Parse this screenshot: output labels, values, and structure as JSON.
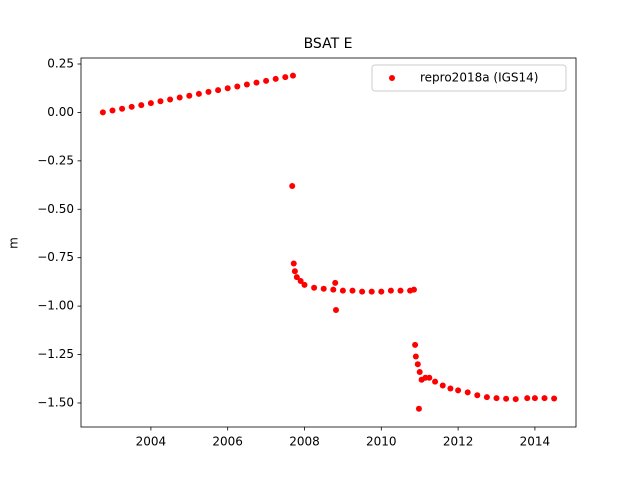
{
  "chart_data": {
    "type": "scatter",
    "title": "BSAT E",
    "y_label": "m",
    "x": [
      2002.75,
      2003.0,
      2003.25,
      2003.5,
      2003.75,
      2004.0,
      2004.25,
      2004.5,
      2004.75,
      2005.0,
      2005.25,
      2005.5,
      2005.75,
      2006.0,
      2006.25,
      2006.5,
      2006.75,
      2007.0,
      2007.25,
      2007.5,
      2007.7,
      2007.68,
      2007.72,
      2007.75,
      2007.8,
      2007.9,
      2008.0,
      2008.25,
      2008.5,
      2008.75,
      2008.8,
      2008.82,
      2009.0,
      2009.25,
      2009.5,
      2009.75,
      2010.0,
      2010.25,
      2010.5,
      2010.75,
      2010.85,
      2010.88,
      2010.9,
      2010.95,
      2010.98,
      2011.0,
      2011.05,
      2011.15,
      2011.25,
      2011.4,
      2011.6,
      2011.8,
      2012.0,
      2012.25,
      2012.5,
      2012.75,
      2013.0,
      2013.25,
      2013.5,
      2013.8,
      2014.0,
      2014.25,
      2014.5
    ],
    "series": [
      {
        "name": "repro2018a (IGS14)",
        "color": "#ff0000",
        "values": [
          0.0,
          0.01,
          0.019,
          0.029,
          0.038,
          0.048,
          0.058,
          0.067,
          0.077,
          0.086,
          0.096,
          0.106,
          0.115,
          0.125,
          0.134,
          0.144,
          0.154,
          0.163,
          0.173,
          0.182,
          0.19,
          -0.38,
          -0.78,
          -0.82,
          -0.85,
          -0.87,
          -0.89,
          -0.905,
          -0.91,
          -0.915,
          -0.88,
          -1.02,
          -0.92,
          -0.92,
          -0.925,
          -0.925,
          -0.925,
          -0.92,
          -0.92,
          -0.92,
          -0.915,
          -1.2,
          -1.26,
          -1.3,
          -1.53,
          -1.34,
          -1.38,
          -1.37,
          -1.37,
          -1.39,
          -1.41,
          -1.425,
          -1.435,
          -1.445,
          -1.46,
          -1.47,
          -1.475,
          -1.478,
          -1.48,
          -1.475,
          -1.475,
          -1.475,
          -1.477
        ]
      }
    ],
    "xlim": [
      2002.18,
      2015.07
    ],
    "xticks": [
      2004,
      2006,
      2008,
      2010,
      2012,
      2014
    ],
    "ylim": [
      -1.624,
      0.281
    ],
    "yticks": [
      {
        "value": 0.25,
        "label": "0.25"
      },
      {
        "value": 0,
        "label": "0.00"
      },
      {
        "value": -0.25,
        "label": "−0.25"
      },
      {
        "value": -0.5,
        "label": "−0.50"
      },
      {
        "value": -0.75,
        "label": "−0.75"
      },
      {
        "value": -1,
        "label": "−1.00"
      },
      {
        "value": -1.25,
        "label": "−1.25"
      },
      {
        "value": -1.5,
        "label": "−1.50"
      }
    ],
    "legend": "upper right",
    "grid": false
  }
}
